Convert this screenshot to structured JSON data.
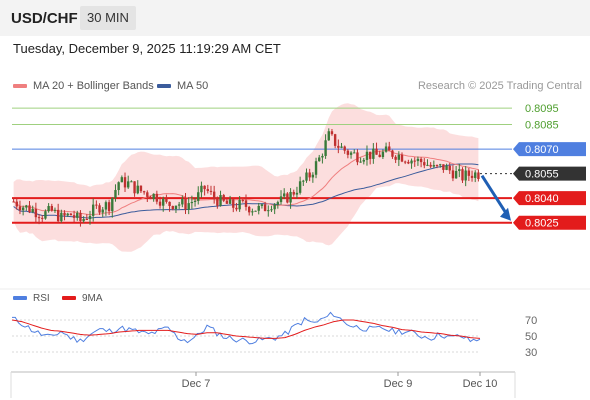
{
  "header": {
    "symbol": "USD/CHF",
    "timeframe": "30 MIN"
  },
  "datetime": "Tuesday, December 9, 2025 11:19:29 AM CET",
  "legend": {
    "ma20": "MA 20 + Bollinger Bands",
    "ma50": "MA 50",
    "credit": "Research © 2025 Trading Central"
  },
  "rsi_legend": {
    "rsi": "RSI",
    "ma": "9MA"
  },
  "colors": {
    "ma20": "#ef7f7f",
    "ma50": "#3b5c9c",
    "bollinger": "#fbd3d3",
    "resistance_green": "#9fd07f",
    "level_blue": "#4f7fe0",
    "support_red": "#e31c1c",
    "current_price": "#333333",
    "arrow": "#1f5fb4",
    "candle_up": "#3a7a3a",
    "candle_down": "#c03030",
    "rsi": "#4f7fe0",
    "rsi_ma": "#e31c1c"
  },
  "chart_data": [
    {
      "type": "candlestick",
      "title": "USD/CHF 30 MIN",
      "price_range": [
        0.799,
        0.81
      ],
      "x_ticks": [
        "Dec 7",
        "Dec 9",
        "Dec 10"
      ],
      "levels": [
        {
          "value": 0.8095,
          "label": "0.8095",
          "kind": "resistance",
          "color": "#9fd07f"
        },
        {
          "value": 0.8085,
          "label": "0.8085",
          "kind": "resistance",
          "color": "#9fd07f"
        },
        {
          "value": 0.807,
          "label": "0.8070",
          "kind": "pivot",
          "color": "#4f7fe0"
        },
        {
          "value": 0.8055,
          "label": "0.8055",
          "kind": "current",
          "color": "#333333"
        },
        {
          "value": 0.804,
          "label": "0.8040",
          "kind": "support",
          "color": "#e31c1c"
        },
        {
          "value": 0.8025,
          "label": "0.8025",
          "kind": "support",
          "color": "#e31c1c"
        }
      ],
      "close_path": [
        0.8038,
        0.8035,
        0.8033,
        0.803,
        0.8032,
        0.8028,
        0.803,
        0.8026,
        0.8031,
        0.8035,
        0.8036,
        0.805,
        0.8049,
        0.8045,
        0.8043,
        0.8041,
        0.8036,
        0.8037,
        0.8036,
        0.8039,
        0.8046,
        0.804,
        0.8037,
        0.8035,
        0.8036,
        0.8034,
        0.8033,
        0.8037,
        0.8038,
        0.8042,
        0.8048,
        0.8054,
        0.8064,
        0.8078,
        0.8072,
        0.8068,
        0.8066,
        0.8067,
        0.8066,
        0.8068,
        0.8067,
        0.8065,
        0.8063,
        0.8062,
        0.8058,
        0.8059,
        0.8056,
        0.8053,
        0.8055
      ],
      "forecast": {
        "from": 0.8055,
        "to": 0.8025
      },
      "series": [
        {
          "name": "MA 20 + Bollinger Bands"
        },
        {
          "name": "MA 50"
        }
      ]
    },
    {
      "type": "line",
      "title": "RSI",
      "y_ticks": [
        70,
        50,
        30
      ],
      "y_range": [
        20,
        80
      ],
      "series": [
        {
          "name": "RSI",
          "values": [
            72,
            66,
            58,
            52,
            48,
            56,
            48,
            44,
            52,
            58,
            56,
            60,
            58,
            55,
            52,
            56,
            60,
            48,
            44,
            50,
            62,
            54,
            48,
            46,
            44,
            44,
            46,
            48,
            52,
            62,
            70,
            66,
            72,
            78,
            68,
            62,
            60,
            58,
            60,
            56,
            56,
            54,
            50,
            48,
            52,
            48,
            50,
            44,
            46
          ]
        },
        {
          "name": "9MA",
          "values": [
            70,
            68,
            64,
            60,
            57,
            56,
            54,
            52,
            51,
            52,
            53,
            55,
            56,
            57,
            57,
            57,
            57,
            55,
            53,
            52,
            54,
            54,
            52,
            50,
            49,
            48,
            47,
            47,
            48,
            52,
            57,
            61,
            64,
            68,
            70,
            70,
            68,
            66,
            63,
            61,
            58,
            57,
            55,
            54,
            53,
            51,
            50,
            48,
            47
          ]
        }
      ]
    }
  ]
}
